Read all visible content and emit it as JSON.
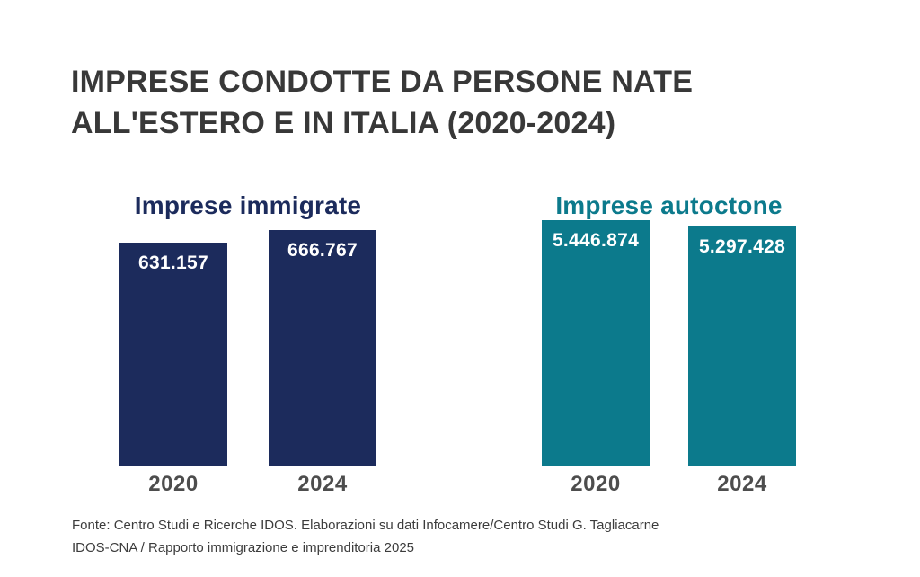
{
  "title": {
    "lines": [
      "IMPRESE CONDOTTE DA PERSONE NATE",
      "ALL'ESTERO E IN ITALIA (2020-2024)"
    ]
  },
  "colors": {
    "navy": "#1c2b5c",
    "teal": "#0c7a8c",
    "title_text": "#383838",
    "year_text": "#4d4d4d",
    "bar_value_text": "#ffffff",
    "background": "#ffffff"
  },
  "groups": [
    {
      "label": "Imprese immigrate",
      "color": "#1c2b5c",
      "bars": [
        {
          "year": "2020",
          "value_label": "631.157"
        },
        {
          "year": "2024",
          "value_label": "666.767"
        }
      ]
    },
    {
      "label": "Imprese autoctone",
      "color": "#0c7a8c",
      "bars": [
        {
          "year": "2020",
          "value_label": "5.446.874"
        },
        {
          "year": "2024",
          "value_label": "5.297.428"
        }
      ]
    }
  ],
  "footer": {
    "line1": "Fonte: Centro Studi e Ricerche IDOS. Elaborazioni su dati Infocamere/Centro Studi G. Tagliacarne",
    "line2": "IDOS-CNA / Rapporto immigrazione e imprenditoria 2025"
  },
  "chart_data": {
    "type": "bar",
    "title": "IMPRESE CONDOTTE DA PERSONE NATE ALL'ESTERO E IN ITALIA (2020-2024)",
    "categories": [
      "2020",
      "2024"
    ],
    "series": [
      {
        "name": "Imprese immigrate",
        "values": [
          631157,
          666767
        ],
        "color": "#1c2b5c"
      },
      {
        "name": "Imprese autoctone",
        "values": [
          5446874,
          5297428
        ],
        "color": "#0c7a8c"
      }
    ],
    "value_labels": [
      [
        "631.157",
        "666.767"
      ],
      [
        "5.446.874",
        "5.297.428"
      ]
    ],
    "xlabel": "",
    "ylabel": "",
    "grid": false,
    "legend_position": "colored panel titles above each group",
    "layout": "two side-by-side panels, one per series; bar heights scaled independently within each panel (not to a common axis)",
    "source": "Fonte: Centro Studi e Ricerche IDOS. Elaborazioni su dati Infocamere/Centro Studi G. Tagliacarne IDOS-CNA / Rapporto immigrazione e imprenditoria 2025"
  }
}
